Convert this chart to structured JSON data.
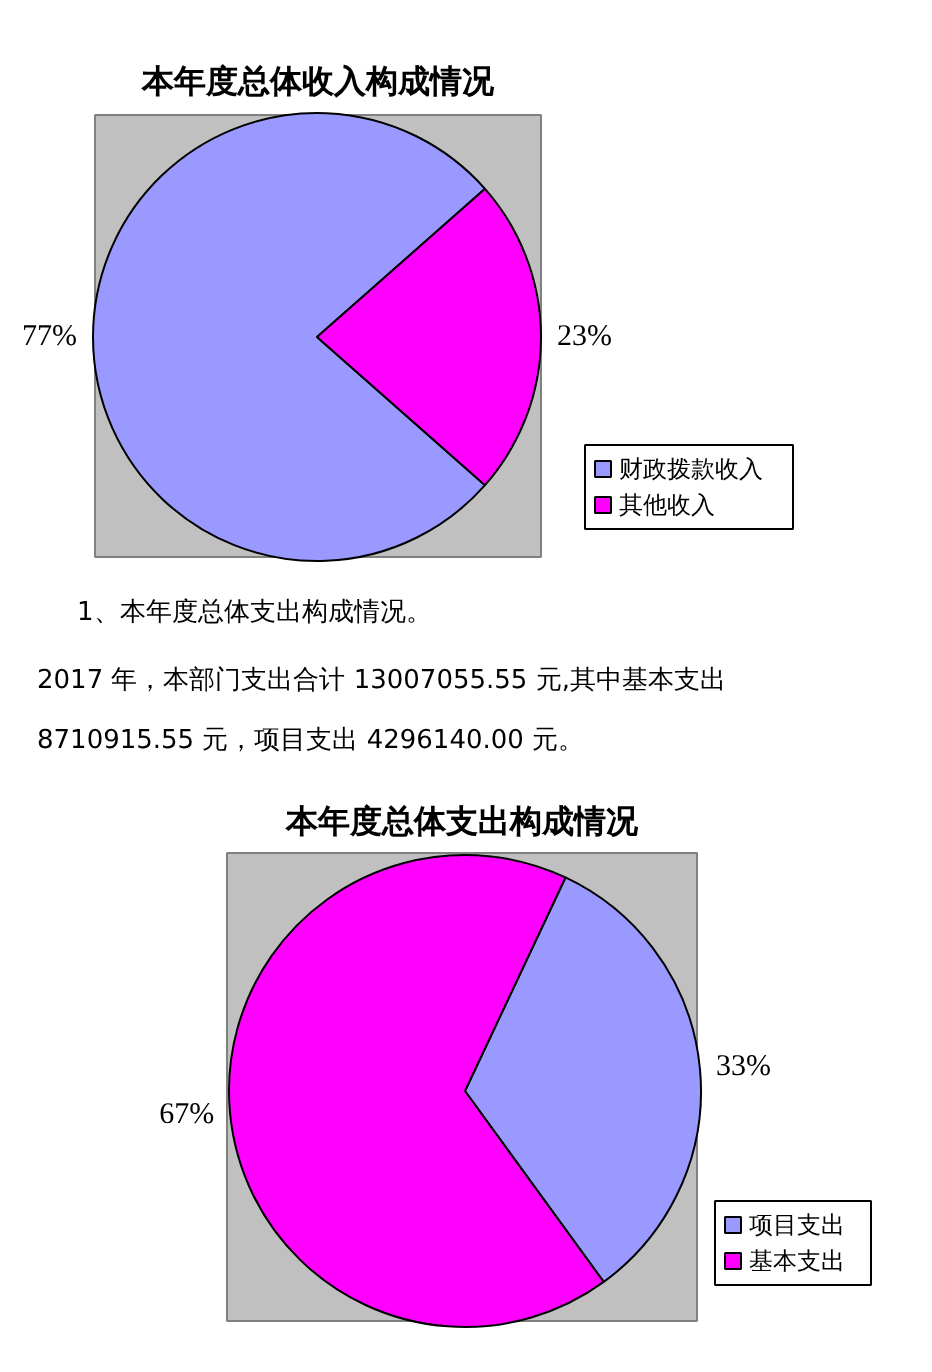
{
  "chart_data": [
    {
      "type": "pie",
      "title": "本年度总体收入构成情况",
      "categories": [
        "财政拨款收入",
        "其他收入"
      ],
      "values": [
        77,
        23
      ],
      "colors": [
        "#9999ff",
        "#ff00ff"
      ],
      "value_labels": [
        "77%",
        "23%"
      ],
      "legend": "right"
    },
    {
      "type": "pie",
      "title": "本年度总体支出构成情况",
      "annotations": [
        "1、本年度总体支出构成情况。",
        "2017 年，本部门支出合计 13007055.55 元,其中基本支出",
        "8710915.55 元，项目支出 4296140.00 元。"
      ],
      "categories": [
        "项目支出",
        "基本支出"
      ],
      "values": [
        33,
        67
      ],
      "colors": [
        "#9999ff",
        "#ff00ff"
      ],
      "value_labels": [
        "33%",
        "67%"
      ],
      "legend": "right"
    }
  ]
}
